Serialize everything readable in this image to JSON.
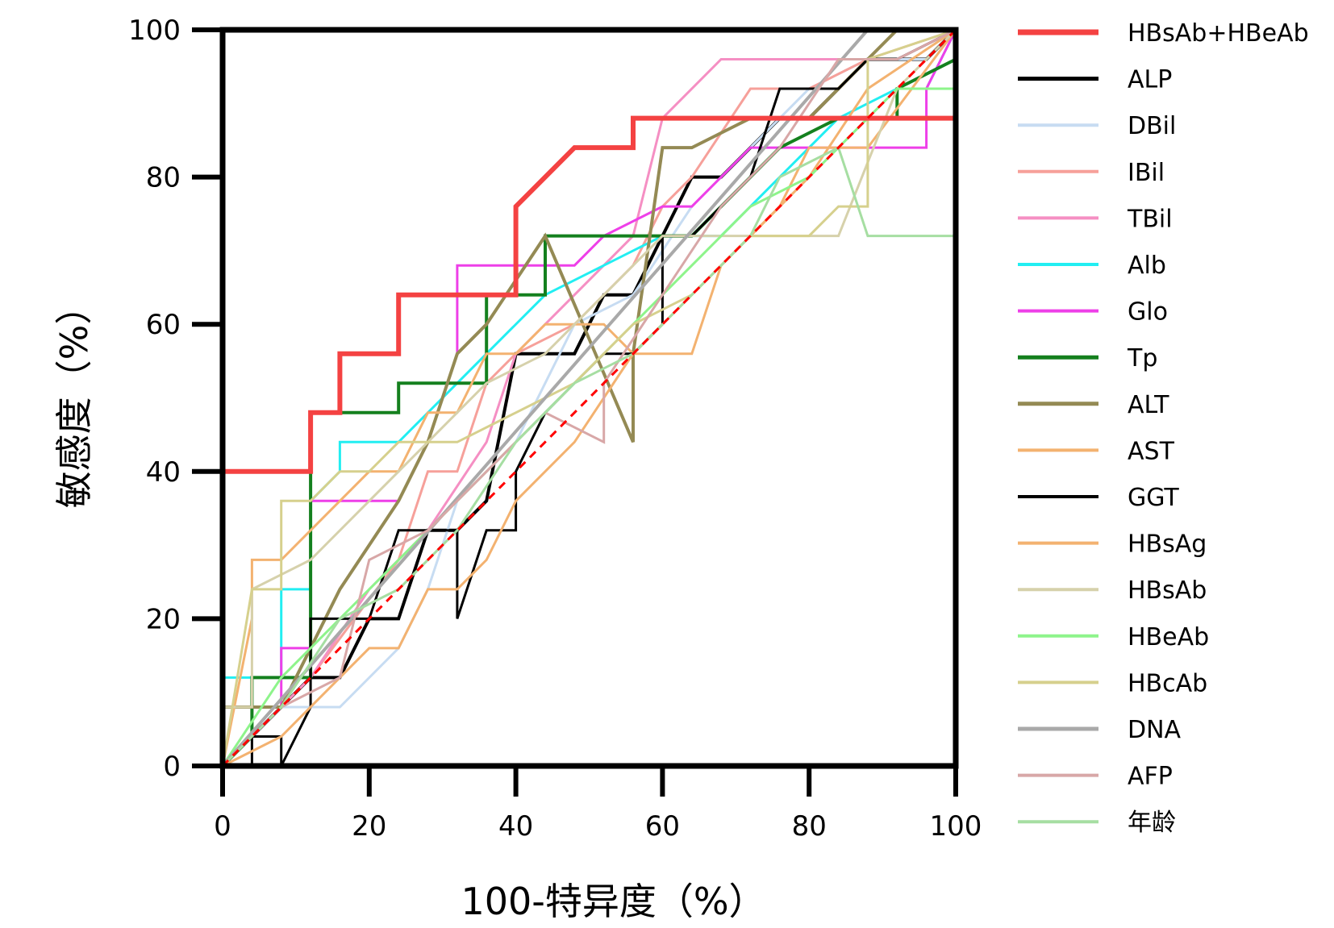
{
  "chart_data": {
    "type": "line",
    "xlabel": "100-特异度（%）",
    "ylabel": "敏感度（%）",
    "xlim": [
      0,
      100
    ],
    "ylim": [
      0,
      100
    ],
    "xticks": [
      0,
      20,
      40,
      60,
      80,
      100
    ],
    "yticks": [
      0,
      20,
      40,
      60,
      80,
      100
    ],
    "grid": false,
    "legend_position": "right",
    "reference_line": {
      "x": [
        0,
        100
      ],
      "y": [
        0,
        100
      ],
      "color": "#ff0000",
      "dashed": true
    },
    "series": [
      {
        "name": "HBsAb+HBeAb",
        "color": "#f44242",
        "width": 6,
        "x": [
          0,
          0,
          12,
          12,
          16,
          16,
          24,
          24,
          32,
          40,
          40,
          48,
          56,
          56,
          100,
          100
        ],
        "y": [
          0,
          40,
          40,
          48,
          48,
          56,
          56,
          64,
          64,
          64,
          76,
          84,
          84,
          88,
          88,
          100
        ]
      },
      {
        "name": "ALP",
        "color": "#000000",
        "width": 4,
        "x": [
          0,
          4,
          8,
          12,
          16,
          20,
          24,
          28,
          32,
          36,
          40,
          44,
          48,
          52,
          56,
          60,
          64,
          68,
          72,
          76,
          80,
          84,
          88,
          92,
          96,
          100
        ],
        "y": [
          0,
          4,
          8,
          12,
          12,
          20,
          20,
          32,
          32,
          36,
          56,
          56,
          56,
          64,
          64,
          72,
          80,
          80,
          84,
          88,
          88,
          92,
          96,
          96,
          96,
          100
        ]
      },
      {
        "name": "DBil",
        "color": "#c7dcf2",
        "width": 3,
        "x": [
          0,
          8,
          16,
          24,
          28,
          32,
          40,
          48,
          56,
          64,
          72,
          80,
          88,
          96,
          100
        ],
        "y": [
          0,
          8,
          8,
          16,
          24,
          36,
          44,
          60,
          64,
          76,
          84,
          92,
          96,
          96,
          100
        ]
      },
      {
        "name": "IBil",
        "color": "#f6a09a",
        "width": 3,
        "x": [
          0,
          12,
          24,
          28,
          32,
          36,
          40,
          48,
          56,
          60,
          64,
          72,
          80,
          88,
          100
        ],
        "y": [
          0,
          12,
          28,
          40,
          40,
          52,
          56,
          60,
          68,
          76,
          80,
          92,
          92,
          96,
          100
        ]
      },
      {
        "name": "TBil",
        "color": "#f58fc3",
        "width": 3,
        "x": [
          0,
          12,
          20,
          28,
          36,
          40,
          48,
          56,
          60,
          68,
          76,
          84,
          92,
          100
        ],
        "y": [
          0,
          12,
          24,
          32,
          44,
          56,
          64,
          72,
          88,
          96,
          96,
          96,
          96,
          100
        ]
      },
      {
        "name": "Alb",
        "color": "#22eef2",
        "width": 3,
        "x": [
          0,
          0,
          4,
          8,
          8,
          12,
          12,
          16,
          16,
          24,
          28,
          36,
          44,
          52,
          60,
          68,
          76,
          84,
          92,
          96,
          100
        ],
        "y": [
          0,
          12,
          12,
          12,
          24,
          24,
          36,
          40,
          44,
          44,
          48,
          56,
          64,
          68,
          72,
          72,
          80,
          88,
          92,
          92,
          100
        ]
      },
      {
        "name": "Glo",
        "color": "#ee3fe8",
        "width": 3,
        "x": [
          0,
          8,
          8,
          12,
          12,
          24,
          28,
          32,
          32,
          40,
          48,
          52,
          60,
          64,
          72,
          80,
          88,
          96,
          96,
          100
        ],
        "y": [
          0,
          8,
          16,
          16,
          36,
          36,
          44,
          56,
          68,
          68,
          68,
          72,
          76,
          76,
          84,
          84,
          84,
          84,
          92,
          100
        ]
      },
      {
        "name": "Tp",
        "color": "#14801e",
        "width": 4,
        "x": [
          0,
          4,
          4,
          12,
          12,
          24,
          24,
          36,
          36,
          44,
          44,
          56,
          64,
          68,
          76,
          84,
          92,
          92,
          100,
          100
        ],
        "y": [
          0,
          4,
          12,
          12,
          48,
          48,
          52,
          52,
          64,
          64,
          72,
          72,
          72,
          76,
          84,
          88,
          88,
          92,
          96,
          100
        ]
      },
      {
        "name": "ALT",
        "color": "#948a54",
        "width": 4,
        "x": [
          0,
          0,
          8,
          16,
          24,
          28,
          32,
          36,
          44,
          56,
          56,
          60,
          64,
          72,
          80,
          88,
          92,
          100
        ],
        "y": [
          0,
          8,
          8,
          24,
          36,
          44,
          56,
          60,
          72,
          44,
          56,
          84,
          84,
          88,
          88,
          96,
          100,
          100
        ]
      },
      {
        "name": "AST",
        "color": "#f3b270",
        "width": 3,
        "x": [
          0,
          4,
          4,
          8,
          12,
          16,
          20,
          24,
          28,
          32,
          36,
          40,
          44,
          48,
          52,
          56,
          64,
          68,
          72,
          76,
          80,
          84,
          88,
          100
        ],
        "y": [
          0,
          20,
          28,
          28,
          32,
          36,
          40,
          40,
          48,
          48,
          56,
          56,
          60,
          60,
          60,
          56,
          56,
          68,
          72,
          76,
          84,
          84,
          84,
          100
        ]
      },
      {
        "name": "GGT",
        "color": "#000000",
        "width": 3,
        "x": [
          0,
          4,
          4,
          8,
          8,
          12,
          12,
          20,
          24,
          28,
          32,
          32,
          36,
          40,
          40,
          44,
          48,
          52,
          56,
          60,
          60,
          64,
          68,
          72,
          76,
          84,
          88,
          92,
          100
        ],
        "y": [
          0,
          0,
          4,
          4,
          0,
          8,
          20,
          20,
          32,
          32,
          32,
          20,
          32,
          32,
          40,
          48,
          52,
          56,
          56,
          60,
          72,
          72,
          76,
          80,
          92,
          92,
          96,
          96,
          100
        ]
      },
      {
        "name": "HBsAg",
        "color": "#f3b270",
        "width": 3,
        "x": [
          0,
          8,
          16,
          20,
          24,
          28,
          32,
          36,
          40,
          48,
          56,
          64,
          72,
          80,
          88,
          100
        ],
        "y": [
          0,
          4,
          12,
          16,
          16,
          24,
          24,
          28,
          36,
          44,
          56,
          64,
          72,
          80,
          92,
          100
        ]
      },
      {
        "name": "HBsAb",
        "color": "#d6d1ab",
        "width": 3,
        "x": [
          0,
          0,
          4,
          4,
          12,
          20,
          28,
          36,
          44,
          52,
          60,
          68,
          76,
          84,
          92,
          100
        ],
        "y": [
          0,
          8,
          8,
          24,
          28,
          36,
          44,
          52,
          56,
          64,
          72,
          72,
          72,
          72,
          92,
          100
        ]
      },
      {
        "name": "HBeAb",
        "color": "#8ef48b",
        "width": 3,
        "x": [
          0,
          8,
          16,
          24,
          32,
          40,
          48,
          56,
          64,
          72,
          80,
          88,
          92,
          100,
          100
        ],
        "y": [
          0,
          12,
          20,
          28,
          36,
          44,
          52,
          60,
          68,
          76,
          80,
          88,
          92,
          92,
          88
        ]
      },
      {
        "name": "HBcAb",
        "color": "#d6d08d",
        "width": 3,
        "x": [
          0,
          4,
          8,
          8,
          12,
          16,
          20,
          24,
          32,
          40,
          48,
          56,
          64,
          72,
          80,
          84,
          88,
          88,
          100
        ],
        "y": [
          0,
          24,
          24,
          36,
          36,
          40,
          40,
          44,
          44,
          48,
          52,
          60,
          64,
          72,
          72,
          76,
          76,
          96,
          100
        ]
      },
      {
        "name": "DNA",
        "color": "#a9a9a9",
        "width": 4,
        "x": [
          0,
          88,
          100
        ],
        "y": [
          0,
          100,
          100
        ]
      },
      {
        "name": "AFP",
        "color": "#d8a7a7",
        "width": 3,
        "x": [
          0,
          8,
          16,
          20,
          28,
          36,
          44,
          52,
          52,
          60,
          68,
          76,
          84,
          92,
          100
        ],
        "y": [
          0,
          8,
          12,
          28,
          32,
          40,
          48,
          44,
          52,
          64,
          76,
          84,
          96,
          96,
          100
        ]
      },
      {
        "name": "年龄",
        "color": "#a6dea2",
        "width": 3,
        "x": [
          0,
          8,
          16,
          24,
          28,
          32,
          40,
          48,
          56,
          64,
          72,
          76,
          84,
          88,
          100,
          100
        ],
        "y": [
          0,
          8,
          20,
          24,
          28,
          32,
          44,
          52,
          56,
          64,
          72,
          80,
          84,
          72,
          72,
          88
        ]
      }
    ]
  }
}
